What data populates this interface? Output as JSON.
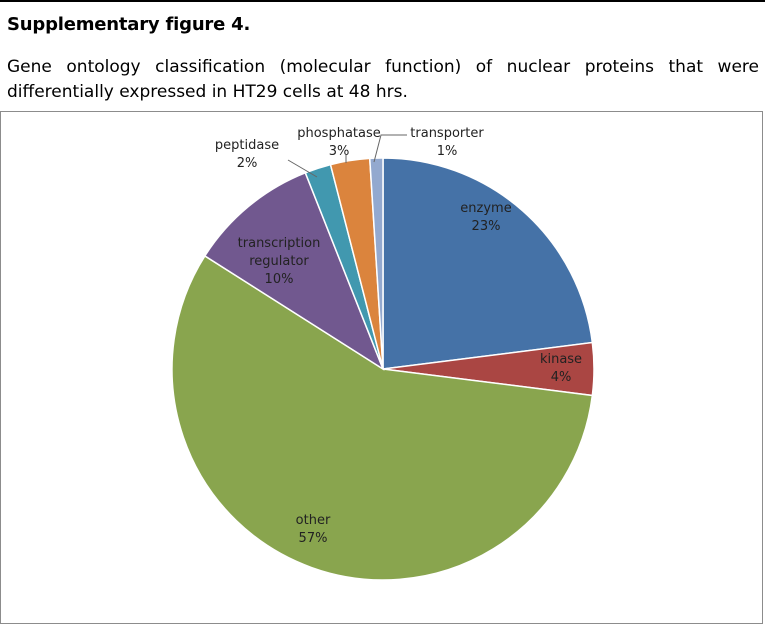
{
  "heading": "Supplementary figure 4.",
  "caption": "Gene ontology classification (molecular function) of nuclear proteins that were differentially expressed in HT29 cells at 48 hrs.",
  "chart_data": {
    "type": "pie",
    "title": "",
    "unit": "%",
    "slices": [
      {
        "label": "enzyme",
        "label_lines": [
          "enzyme"
        ],
        "value": 23,
        "display": "23%",
        "color": "#4572A7"
      },
      {
        "label": "kinase",
        "label_lines": [
          "kinase"
        ],
        "value": 4,
        "display": "4%",
        "color": "#AA4643"
      },
      {
        "label": "other",
        "label_lines": [
          "other"
        ],
        "value": 57,
        "display": "57%",
        "color": "#89A54E"
      },
      {
        "label": "transcription regulator",
        "label_lines": [
          "transcription",
          "regulator"
        ],
        "value": 10,
        "display": "10%",
        "color": "#71588F"
      },
      {
        "label": "peptidase",
        "label_lines": [
          "peptidase"
        ],
        "value": 2,
        "display": "2%",
        "color": "#4198AF"
      },
      {
        "label": "phosphatase",
        "label_lines": [
          "phosphatase"
        ],
        "value": 3,
        "display": "3%",
        "color": "#DB843D"
      },
      {
        "label": "transporter",
        "label_lines": [
          "transporter"
        ],
        "value": 1,
        "display": "1%",
        "color": "#93A9CF"
      }
    ]
  }
}
